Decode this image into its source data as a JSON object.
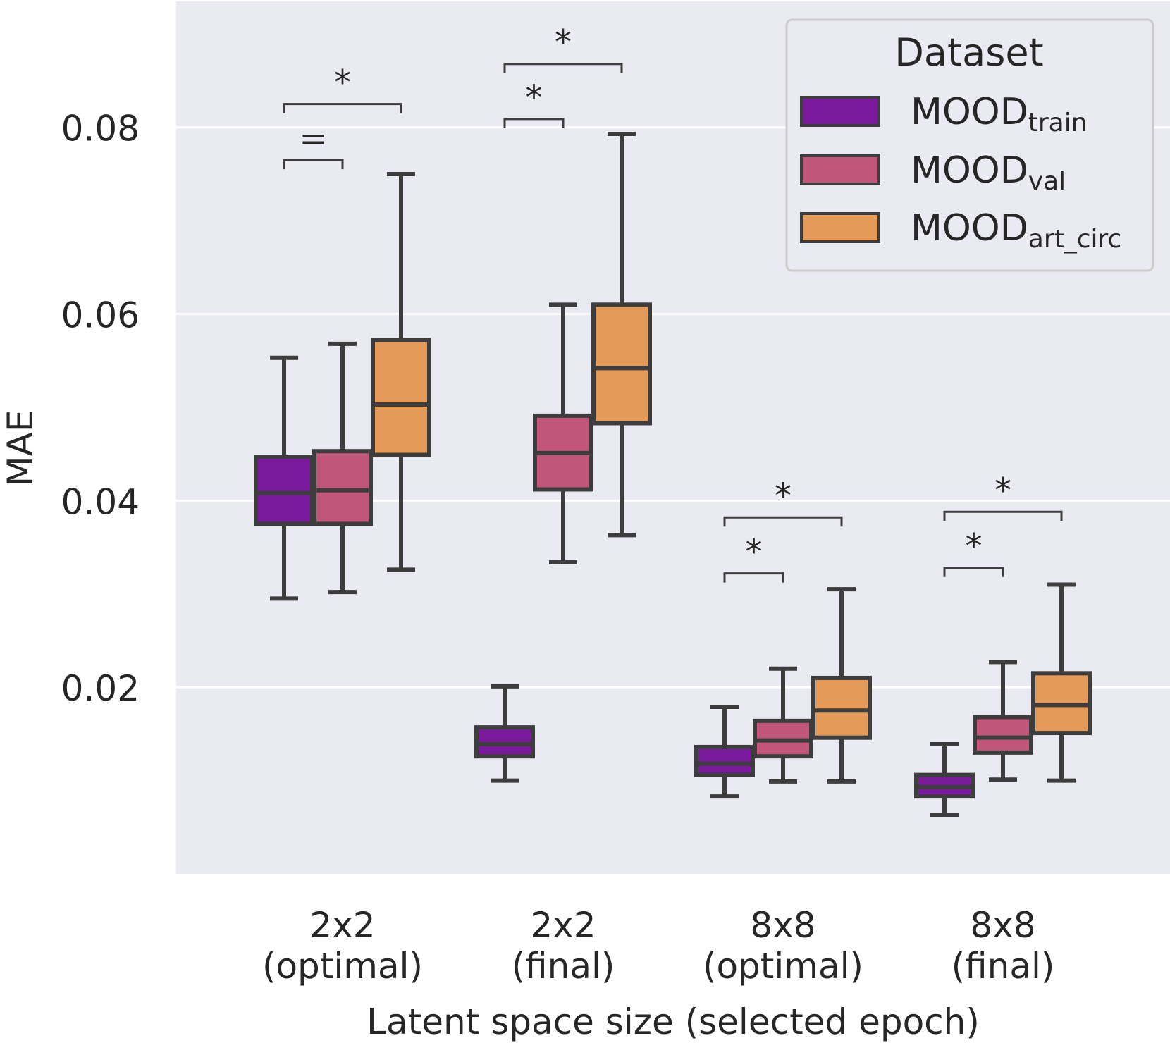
{
  "chart_data": {
    "type": "boxplot",
    "title": "",
    "xlabel": "Latent space size (selected epoch)",
    "ylabel": "MAE",
    "ylim": [
      0.0,
      0.0935
    ],
    "yticks": [
      "0.02",
      "0.04",
      "0.06",
      "0.08"
    ],
    "ytick_values": [
      0.02,
      0.04,
      0.06,
      0.08
    ],
    "grid": true,
    "categories": [
      {
        "line1": "2x2",
        "line2": "(optimal)"
      },
      {
        "line1": "2x2",
        "line2": "(final)"
      },
      {
        "line1": "8x8",
        "line2": "(optimal)"
      },
      {
        "line1": "8x8",
        "line2": "(final)"
      }
    ],
    "legend": {
      "title": "Dataset",
      "position": "top-right",
      "entries": [
        {
          "base": "MOOD",
          "sub": "train",
          "color": "#7a199c"
        },
        {
          "base": "MOOD",
          "sub": "val",
          "color": "#c1567a"
        },
        {
          "base": "MOOD",
          "sub": "art_circ",
          "color": "#e59b57"
        }
      ]
    },
    "series": [
      {
        "name": "MOODtrain",
        "color": "#7a199c",
        "boxes": [
          {
            "category": 0,
            "whislo": 0.0295,
            "q1": 0.0375,
            "med": 0.0408,
            "q3": 0.0447,
            "whishi": 0.0553
          },
          {
            "category": 1,
            "whislo": 0.01,
            "q1": 0.0126,
            "med": 0.0139,
            "q3": 0.0157,
            "whishi": 0.0201
          },
          {
            "category": 2,
            "whislo": 0.0083,
            "q1": 0.0106,
            "med": 0.0118,
            "q3": 0.0136,
            "whishi": 0.0179
          },
          {
            "category": 3,
            "whislo": 0.0063,
            "q1": 0.0083,
            "med": 0.0093,
            "q3": 0.0106,
            "whishi": 0.0139
          }
        ]
      },
      {
        "name": "MOODval",
        "color": "#c1567a",
        "boxes": [
          {
            "category": 0,
            "whislo": 0.0302,
            "q1": 0.0375,
            "med": 0.0411,
            "q3": 0.0453,
            "whishi": 0.0568
          },
          {
            "category": 1,
            "whislo": 0.0334,
            "q1": 0.0412,
            "med": 0.0451,
            "q3": 0.0491,
            "whishi": 0.061
          },
          {
            "category": 2,
            "whislo": 0.0099,
            "q1": 0.0126,
            "med": 0.0143,
            "q3": 0.0164,
            "whishi": 0.022
          },
          {
            "category": 3,
            "whislo": 0.0101,
            "q1": 0.013,
            "med": 0.0146,
            "q3": 0.0168,
            "whishi": 0.0227
          }
        ]
      },
      {
        "name": "MOODart_circ",
        "color": "#e59b57",
        "boxes": [
          {
            "category": 0,
            "whislo": 0.0326,
            "q1": 0.0449,
            "med": 0.0503,
            "q3": 0.0572,
            "whishi": 0.075
          },
          {
            "category": 1,
            "whislo": 0.0363,
            "q1": 0.0483,
            "med": 0.0542,
            "q3": 0.061,
            "whishi": 0.0793
          },
          {
            "category": 2,
            "whislo": 0.0099,
            "q1": 0.0146,
            "med": 0.0175,
            "q3": 0.021,
            "whishi": 0.0305
          },
          {
            "category": 3,
            "whislo": 0.01,
            "q1": 0.0151,
            "med": 0.0181,
            "q3": 0.0215,
            "whishi": 0.031
          }
        ]
      }
    ],
    "annotations": [
      {
        "category": 0,
        "from": 0,
        "to": 1,
        "level": 0.0765,
        "label": "="
      },
      {
        "category": 0,
        "from": 0,
        "to": 2,
        "level": 0.0825,
        "label": "*"
      },
      {
        "category": 1,
        "from": 0,
        "to": 1,
        "level": 0.0809,
        "label": "*"
      },
      {
        "category": 1,
        "from": 0,
        "to": 2,
        "level": 0.0868,
        "label": "*"
      },
      {
        "category": 2,
        "from": 0,
        "to": 1,
        "level": 0.0322,
        "label": "*"
      },
      {
        "category": 2,
        "from": 0,
        "to": 2,
        "level": 0.0382,
        "label": "*"
      },
      {
        "category": 3,
        "from": 0,
        "to": 1,
        "level": 0.0328,
        "label": "*"
      },
      {
        "category": 3,
        "from": 0,
        "to": 2,
        "level": 0.0388,
        "label": "*"
      }
    ]
  }
}
